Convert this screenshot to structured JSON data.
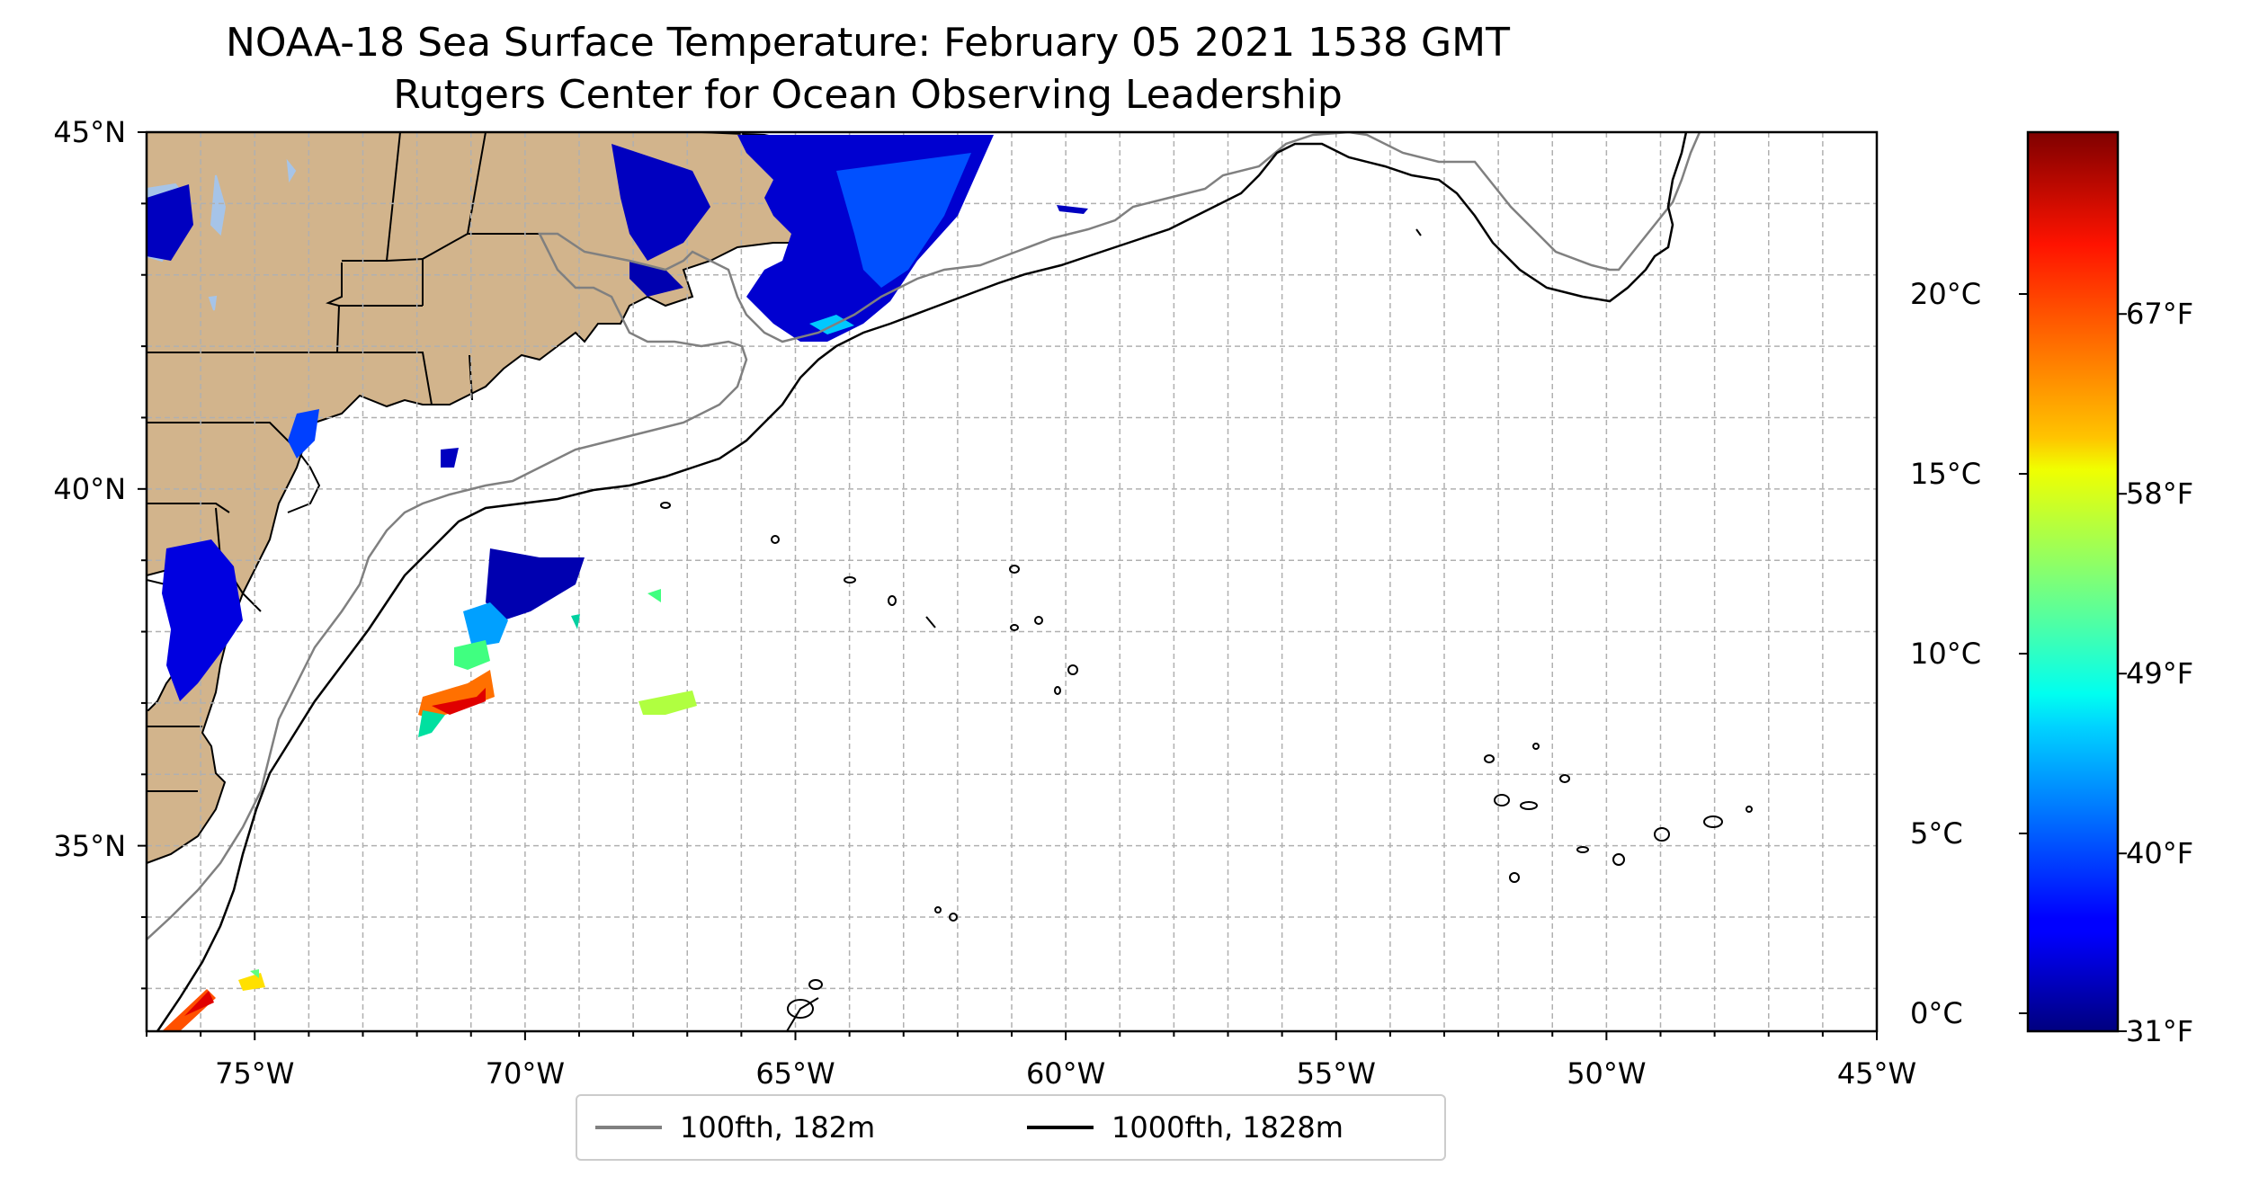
{
  "title": {
    "line1": "NOAA-18 Sea Surface Temperature: February 05 2021 1538 GMT",
    "line2": "Rutgers Center for Ocean Observing Leadership"
  },
  "map": {
    "lon_range": [
      -77,
      -45
    ],
    "lat_range": [
      32.4,
      45
    ],
    "x_ticks": [
      {
        "lon": -75,
        "label": "75°W"
      },
      {
        "lon": -70,
        "label": "70°W"
      },
      {
        "lon": -65,
        "label": "65°W"
      },
      {
        "lon": -60,
        "label": "60°W"
      },
      {
        "lon": -55,
        "label": "55°W"
      },
      {
        "lon": -50,
        "label": "50°W"
      },
      {
        "lon": -45,
        "label": "45°W"
      }
    ],
    "y_ticks": [
      {
        "lat": 45,
        "label": "45°N"
      },
      {
        "lat": 40,
        "label": "40°N"
      },
      {
        "lat": 35,
        "label": "35°N"
      }
    ],
    "gridlines": true,
    "grid_step_deg": 1,
    "colors": {
      "land": "#D2B48C",
      "lakes": "#A6C4E8",
      "isobath_100": "#808080",
      "isobath_1000": "#000000",
      "coast": "#000000"
    }
  },
  "legend": {
    "items": [
      {
        "label": "100fth, 182m",
        "color": "#808080"
      },
      {
        "label": "1000fth, 1828m",
        "color": "#000000"
      }
    ]
  },
  "colorbar": {
    "colormap": "jet",
    "range_c": [
      -0.5,
      24.5
    ],
    "celsius_ticks": [
      {
        "value": 0,
        "label": "0°C"
      },
      {
        "value": 5,
        "label": "5°C"
      },
      {
        "value": 10,
        "label": "10°C"
      },
      {
        "value": 15,
        "label": "15°C"
      },
      {
        "value": 20,
        "label": "20°C"
      }
    ],
    "fahrenheit_ticks": [
      {
        "value": 31,
        "label": "31°F"
      },
      {
        "value": 40,
        "label": "40°F"
      },
      {
        "value": 49,
        "label": "49°F"
      },
      {
        "value": 58,
        "label": "58°F"
      },
      {
        "value": 67,
        "label": "67°F"
      }
    ]
  },
  "sst_patches_c": [
    {
      "name": "gulf-of-maine-swath",
      "lon": -63.5,
      "lat": 43.3,
      "temp": 2.5
    },
    {
      "name": "scotian-shelf-swath",
      "lon": -64.5,
      "lat": 42.9,
      "temp": 3
    },
    {
      "name": "hudson-bay-area",
      "lon": -76.4,
      "lat": 44.2,
      "temp": 3
    },
    {
      "name": "delaware-chesapeake",
      "lon": -75.5,
      "lat": 38.6,
      "temp": 4
    },
    {
      "name": "offshore-patch-north",
      "lon": -70.6,
      "lat": 38.6,
      "temp": 8
    },
    {
      "name": "offshore-patch-warm",
      "lon": -71.2,
      "lat": 37.1,
      "temp": 21
    },
    {
      "name": "central-patch",
      "lon": -67.4,
      "lat": 37.0,
      "temp": 15
    },
    {
      "name": "southwest-patch",
      "lon": -75.8,
      "lat": 32.8,
      "temp": 20
    }
  ]
}
